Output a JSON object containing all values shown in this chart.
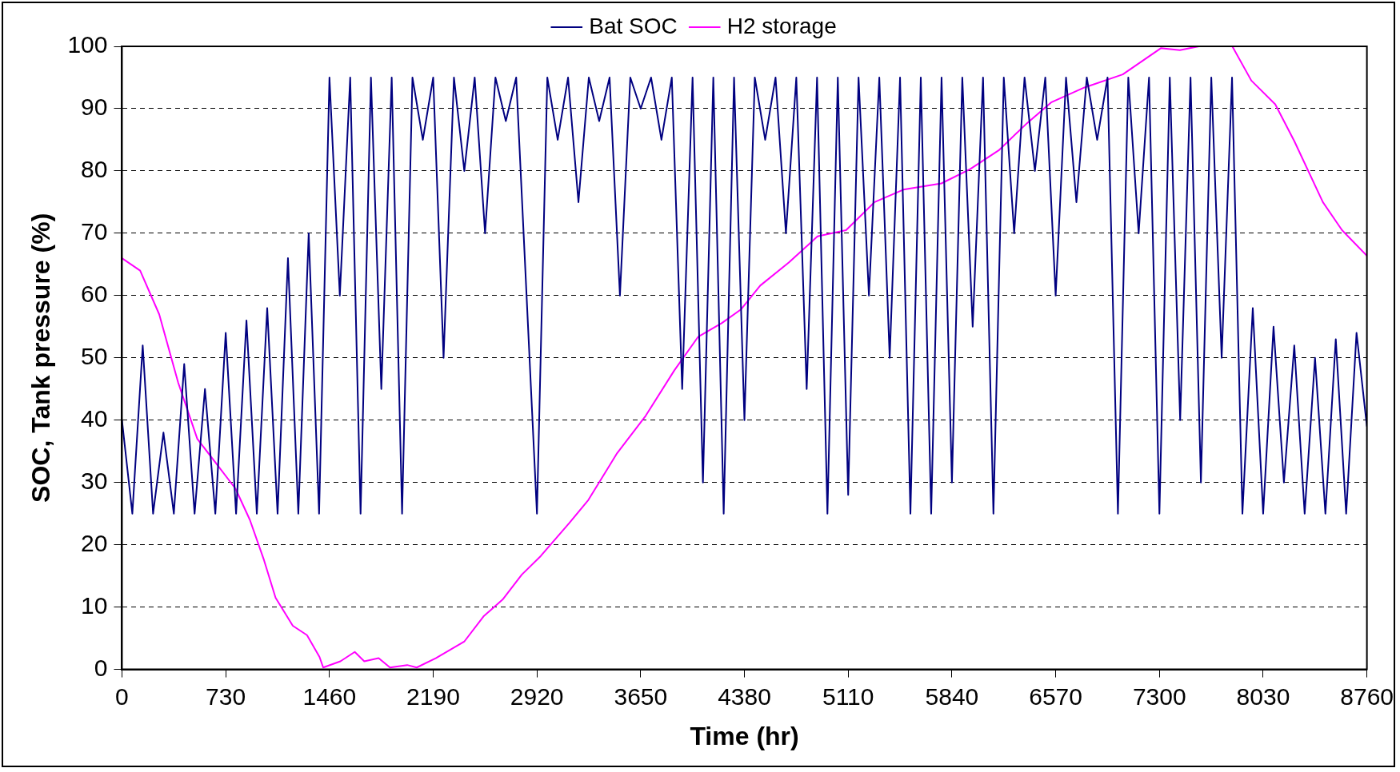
{
  "chart_data": {
    "type": "line",
    "xlabel": "Time (hr)",
    "ylabel": "SOC, Tank pressure (%)",
    "xlim": [
      0,
      8760
    ],
    "xticks": [
      0,
      730,
      1460,
      2190,
      2920,
      3650,
      4380,
      5110,
      5840,
      6570,
      7300,
      8030,
      8760
    ],
    "ylim": [
      0,
      100
    ],
    "yticks": [
      0,
      10,
      20,
      30,
      40,
      50,
      60,
      70,
      80,
      90,
      100
    ],
    "grid": "y",
    "legend": "top",
    "marker": "none",
    "line_style": "solid",
    "series": [
      {
        "name": "Bat SOC",
        "color": "#000080",
        "x": [
          0,
          73,
          146,
          219,
          292,
          365,
          438,
          511,
          584,
          657,
          730,
          803,
          876,
          949,
          1022,
          1095,
          1168,
          1241,
          1314,
          1387,
          1460,
          1533,
          1606,
          1679,
          1752,
          1825,
          1898,
          1971,
          2044,
          2117,
          2190,
          2263,
          2336,
          2409,
          2482,
          2555,
          2628,
          2701,
          2774,
          2847,
          2920,
          2993,
          3066,
          3139,
          3212,
          3285,
          3358,
          3431,
          3504,
          3577,
          3650,
          3723,
          3796,
          3869,
          3942,
          4015,
          4088,
          4161,
          4234,
          4307,
          4380,
          4453,
          4526,
          4599,
          4672,
          4745,
          4818,
          4891,
          4964,
          5037,
          5110,
          5183,
          5256,
          5329,
          5402,
          5475,
          5548,
          5621,
          5694,
          5767,
          5840,
          5913,
          5986,
          6059,
          6132,
          6205,
          6278,
          6351,
          6424,
          6497,
          6570,
          6643,
          6716,
          6789,
          6862,
          6935,
          7008,
          7081,
          7154,
          7227,
          7300,
          7373,
          7446,
          7519,
          7592,
          7665,
          7738,
          7811,
          7884,
          7957,
          8030,
          8103,
          8176,
          8249,
          8322,
          8395,
          8468,
          8541,
          8614,
          8687,
          8760
        ],
        "values": [
          40,
          25,
          52,
          25,
          38,
          25,
          49,
          25,
          45,
          25,
          54,
          25,
          56,
          25,
          58,
          25,
          66,
          25,
          70,
          25,
          95,
          60,
          95,
          25,
          95,
          45,
          95,
          25,
          95,
          85,
          95,
          50,
          95,
          80,
          95,
          70,
          95,
          88,
          95,
          60,
          25,
          95,
          85,
          95,
          75,
          95,
          88,
          95,
          60,
          95,
          90,
          95,
          85,
          95,
          45,
          95,
          30,
          95,
          25,
          95,
          40,
          95,
          85,
          95,
          70,
          95,
          45,
          95,
          25,
          95,
          28,
          95,
          60,
          95,
          50,
          95,
          25,
          95,
          25,
          95,
          30,
          95,
          55,
          95,
          25,
          95,
          70,
          95,
          80,
          95,
          60,
          95,
          75,
          95,
          85,
          95,
          25,
          95,
          70,
          95,
          25,
          95,
          40,
          95,
          30,
          95,
          50,
          95,
          25,
          58,
          25,
          55,
          30,
          52,
          25,
          50,
          25,
          53,
          25,
          54,
          39
        ]
      },
      {
        "name": "H2 storage",
        "color": "#ff00ff",
        "x": [
          0,
          128,
          262,
          396,
          530,
          665,
          799,
          900,
          1000,
          1081,
          1202,
          1302,
          1390,
          1416,
          1537,
          1638,
          1705,
          1806,
          1886,
          2007,
          2074,
          2208,
          2410,
          2544,
          2678,
          2813,
          2947,
          3148,
          3282,
          3484,
          3685,
          3887,
          4055,
          4222,
          4357,
          4491,
          4692,
          4894,
          5095,
          5296,
          5498,
          5766,
          5968,
          6169,
          6370,
          6538,
          6773,
          7042,
          7310,
          7444,
          7578,
          7813,
          7947,
          8115,
          8249,
          8450,
          8585,
          8760
        ],
        "values": [
          66,
          64,
          57,
          46,
          37,
          33,
          29,
          24,
          17.5,
          11.5,
          7,
          5.5,
          2,
          0.3,
          1.3,
          2.8,
          1.3,
          1.8,
          0.3,
          0.7,
          0.3,
          1.8,
          4.5,
          8.5,
          11.2,
          15.2,
          18.2,
          23.5,
          27.2,
          34.7,
          40.7,
          48,
          53.4,
          55.6,
          57.8,
          61.6,
          65.3,
          69.5,
          70.5,
          75,
          77,
          78,
          80.3,
          83.3,
          87.7,
          91,
          93.4,
          95.5,
          99.7,
          99.4,
          100,
          100,
          94.5,
          90.7,
          84.8,
          75,
          70.5,
          66.4
        ]
      }
    ]
  }
}
